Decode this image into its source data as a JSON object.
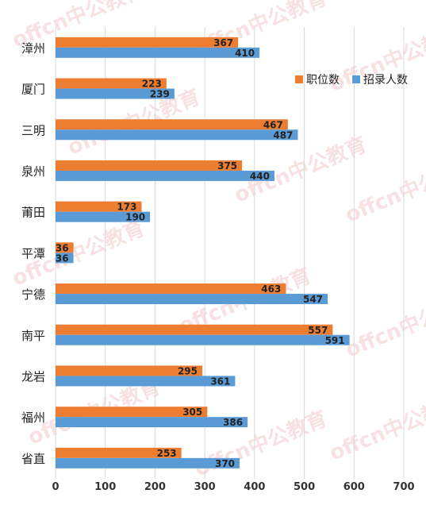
{
  "chart_data": {
    "type": "bar",
    "orientation": "horizontal",
    "categories": [
      "漳州",
      "厦门",
      "三明",
      "泉州",
      "莆田",
      "平潭",
      "宁德",
      "南平",
      "龙岩",
      "福州",
      "省直"
    ],
    "series": [
      {
        "name": "职位数",
        "color": "#ED7D31",
        "values": [
          367,
          223,
          467,
          375,
          173,
          36,
          463,
          557,
          295,
          305,
          253
        ]
      },
      {
        "name": "招录人数",
        "color": "#5B9BD5",
        "values": [
          410,
          239,
          487,
          440,
          190,
          36,
          547,
          591,
          361,
          386,
          370
        ]
      }
    ],
    "xlim": [
      0,
      700
    ],
    "xticks": [
      "0",
      "100",
      "200",
      "300",
      "400",
      "500",
      "600",
      "700"
    ],
    "grid": true,
    "legend_position": "top-right",
    "title": "",
    "xlabel": "",
    "ylabel": ""
  },
  "watermark": {
    "text": "offcn中公教育",
    "color": "#F4C9C9"
  }
}
